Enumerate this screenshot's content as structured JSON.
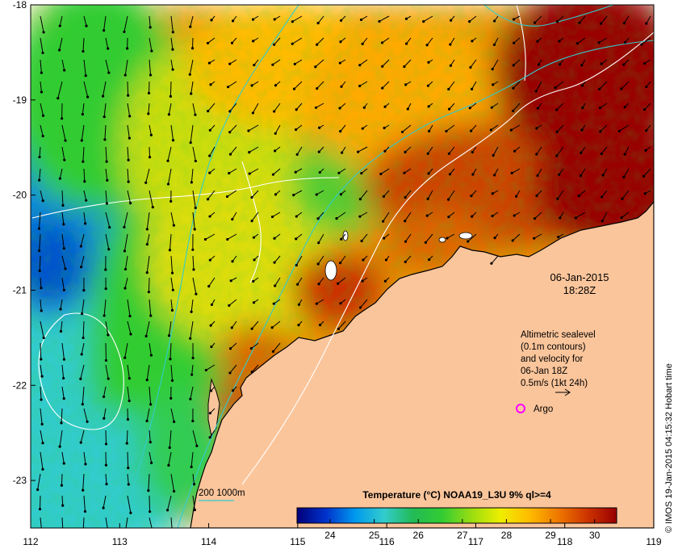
{
  "map": {
    "date_label": "06-Jan-2015",
    "time_label": "18:28Z",
    "lon_ticks": [
      "112",
      "113",
      "114",
      "115",
      "116",
      "117",
      "118",
      "119"
    ],
    "lat_ticks": [
      "-18",
      "-19",
      "-20",
      "-21",
      "-22",
      "-23"
    ],
    "lon_range": [
      112,
      119
    ],
    "lat_range": [
      -23.5,
      -18
    ]
  },
  "legend_box": {
    "line1": "Altimetric sealevel",
    "line2": "(0.1m contours)",
    "line3": "and velocity for",
    "line4": "06-Jan 18Z",
    "line5": "0.5m/s (1kt 24h)",
    "argo_label": "Argo"
  },
  "depth_legend": {
    "label": "200  1000m"
  },
  "colorbar": {
    "title": "Temperature (°C) NOAA19_L3U 9% ql>=4",
    "ticks": [
      "24",
      "25",
      "26",
      "27",
      "28",
      "29",
      "30"
    ],
    "range": [
      23.25,
      30.5
    ],
    "colors": [
      "#00007a",
      "#0033cc",
      "#0099ee",
      "#33cccc",
      "#22bb55",
      "#33cc33",
      "#99dd11",
      "#eeee00",
      "#ffbb00",
      "#ee7700",
      "#cc3300",
      "#990000"
    ]
  },
  "credit": "© IMOS 19-Jan-2015 04:15:32 Hobart time",
  "colors": {
    "land": "#fbc59b",
    "coast": "#000000",
    "cloud": "#ffffff",
    "contour": "#ffffff",
    "bathy": "#33cccc",
    "argo": "#ff00ff"
  }
}
